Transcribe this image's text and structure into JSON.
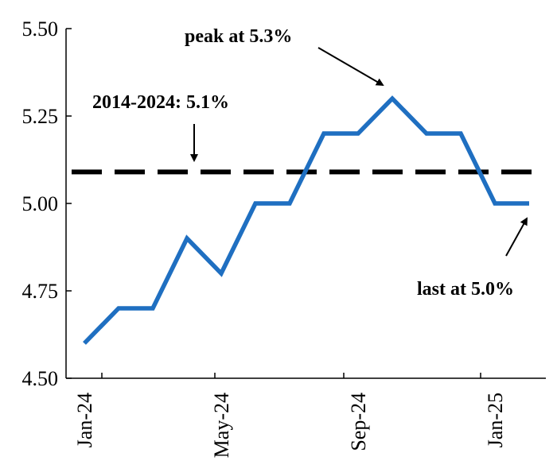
{
  "chart_data": {
    "type": "line",
    "title": "",
    "xlabel": "",
    "ylabel": "",
    "ylim": [
      4.5,
      5.5
    ],
    "yticks": [
      "4.50",
      "4.75",
      "5.00",
      "5.25",
      "5.50"
    ],
    "x": [
      "Jan-24",
      "Feb-24",
      "Mar-24",
      "Apr-24",
      "May-24",
      "Jun-24",
      "Jul-24",
      "Aug-24",
      "Sep-24",
      "Oct-24",
      "Nov-24",
      "Dec-24",
      "Jan-25",
      "Feb-25"
    ],
    "xtick_labels": [
      "Jan-24",
      "May-24",
      "Sep-24",
      "Jan-25"
    ],
    "series": [
      {
        "values": [
          4.6,
          4.7,
          4.7,
          4.9,
          4.8,
          5.0,
          5.0,
          5.2,
          5.2,
          5.3,
          5.2,
          5.2,
          5.0,
          5.0
        ],
        "color": "#1f6fc1"
      }
    ],
    "reference_line": {
      "value": 5.09,
      "style": "dashed",
      "color": "#000000"
    },
    "annotations": [
      {
        "text": "peak at 5.3%",
        "target": "Oct-24"
      },
      {
        "text": "2014-2024: 5.1%",
        "target": "reference"
      },
      {
        "text": "last at 5.0%",
        "target": "Feb-25"
      }
    ],
    "grid": false,
    "legend": "none"
  }
}
